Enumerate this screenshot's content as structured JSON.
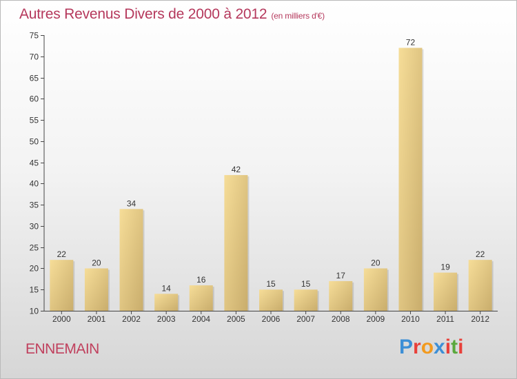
{
  "title": "Autres Revenus Divers de 2000 à 2012",
  "subtitle": "(en milliers d'€)",
  "location": "ENNEMAIN",
  "brand": {
    "text": "Proxiti",
    "letter_colors": [
      "#3d8fd6",
      "#e8403a",
      "#f29a1f",
      "#3d8fd6",
      "#e8403a",
      "#5aa83d",
      "#e8403a"
    ]
  },
  "colors": {
    "bar_light": "#f6dd98",
    "bar_dark": "#c9ad6c",
    "title": "#b5385c",
    "axis": "#444444"
  },
  "chart_data": {
    "type": "bar",
    "title": "Autres Revenus Divers de 2000 à 2012",
    "subtitle": "(en milliers d'€)",
    "categories": [
      "2000",
      "2001",
      "2002",
      "2003",
      "2004",
      "2005",
      "2006",
      "2007",
      "2008",
      "2009",
      "2010",
      "2011",
      "2012"
    ],
    "values": [
      22,
      20,
      34,
      14,
      16,
      42,
      15,
      15,
      17,
      20,
      72,
      19,
      22
    ],
    "ylim": [
      10,
      75
    ],
    "yticks": [
      10,
      15,
      20,
      25,
      30,
      35,
      40,
      45,
      50,
      55,
      60,
      65,
      70,
      75
    ],
    "grid": false,
    "legend": "none"
  }
}
